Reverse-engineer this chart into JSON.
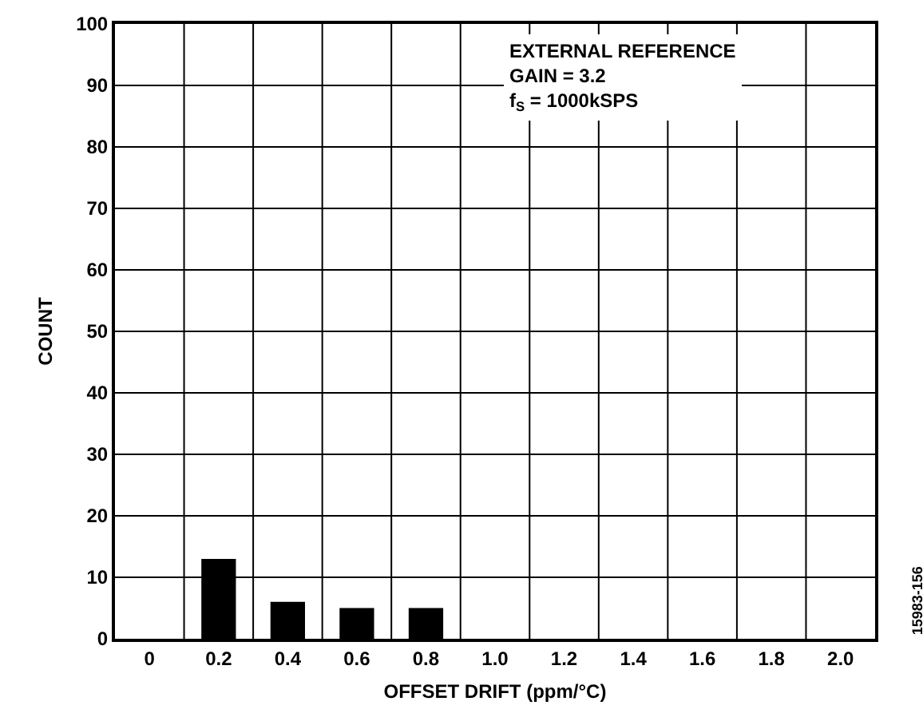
{
  "chart_data": {
    "type": "bar",
    "xlabel": "OFFSET DRIFT (ppm/°C)",
    "ylabel": "COUNT",
    "categories": [
      "0",
      "0.2",
      "0.4",
      "0.6",
      "0.8",
      "1.0",
      "1.2",
      "1.4",
      "1.6",
      "1.8",
      "2.0"
    ],
    "values": [
      0,
      13,
      6,
      5,
      5,
      0,
      0,
      0,
      0,
      0,
      0
    ],
    "color": "#000000",
    "ylim": [
      0,
      100
    ],
    "yticks": [
      0,
      10,
      20,
      30,
      40,
      50,
      60,
      70,
      80,
      90,
      100
    ],
    "grid": true,
    "annotations": [
      "EXTERNAL REFERENCE\nGAIN = 3.2\nf$_{S}$ = 1000kSPS",
      "15983-156"
    ]
  }
}
